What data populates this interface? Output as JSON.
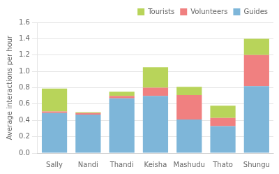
{
  "chart_data": {
    "type": "bar",
    "stacked": true,
    "categories": [
      "Sally",
      "Nandi",
      "Thandi",
      "Keisha",
      "Mashudu",
      "Thato",
      "Shungu"
    ],
    "series": [
      {
        "name": "Guides",
        "color": "#7eb6d9",
        "values": [
          0.49,
          0.47,
          0.67,
          0.7,
          0.41,
          0.33,
          0.82
        ]
      },
      {
        "name": "Volunteers",
        "color": "#f08080",
        "values": [
          0.02,
          0.02,
          0.03,
          0.1,
          0.3,
          0.1,
          0.38
        ]
      },
      {
        "name": "Tourists",
        "color": "#b8d45a",
        "values": [
          0.28,
          0.01,
          0.05,
          0.25,
          0.1,
          0.15,
          0.2
        ]
      }
    ],
    "ylabel": "Average interactions per hour",
    "ylim": [
      0,
      1.6
    ],
    "yticks": [
      {
        "value": 0,
        "label": "0.0"
      },
      0.2,
      0.4,
      0.6,
      0.8,
      {
        "value": 1,
        "label": "1.0"
      },
      1.2,
      1.4,
      1.6
    ],
    "grid": true,
    "legend": "upper right"
  }
}
